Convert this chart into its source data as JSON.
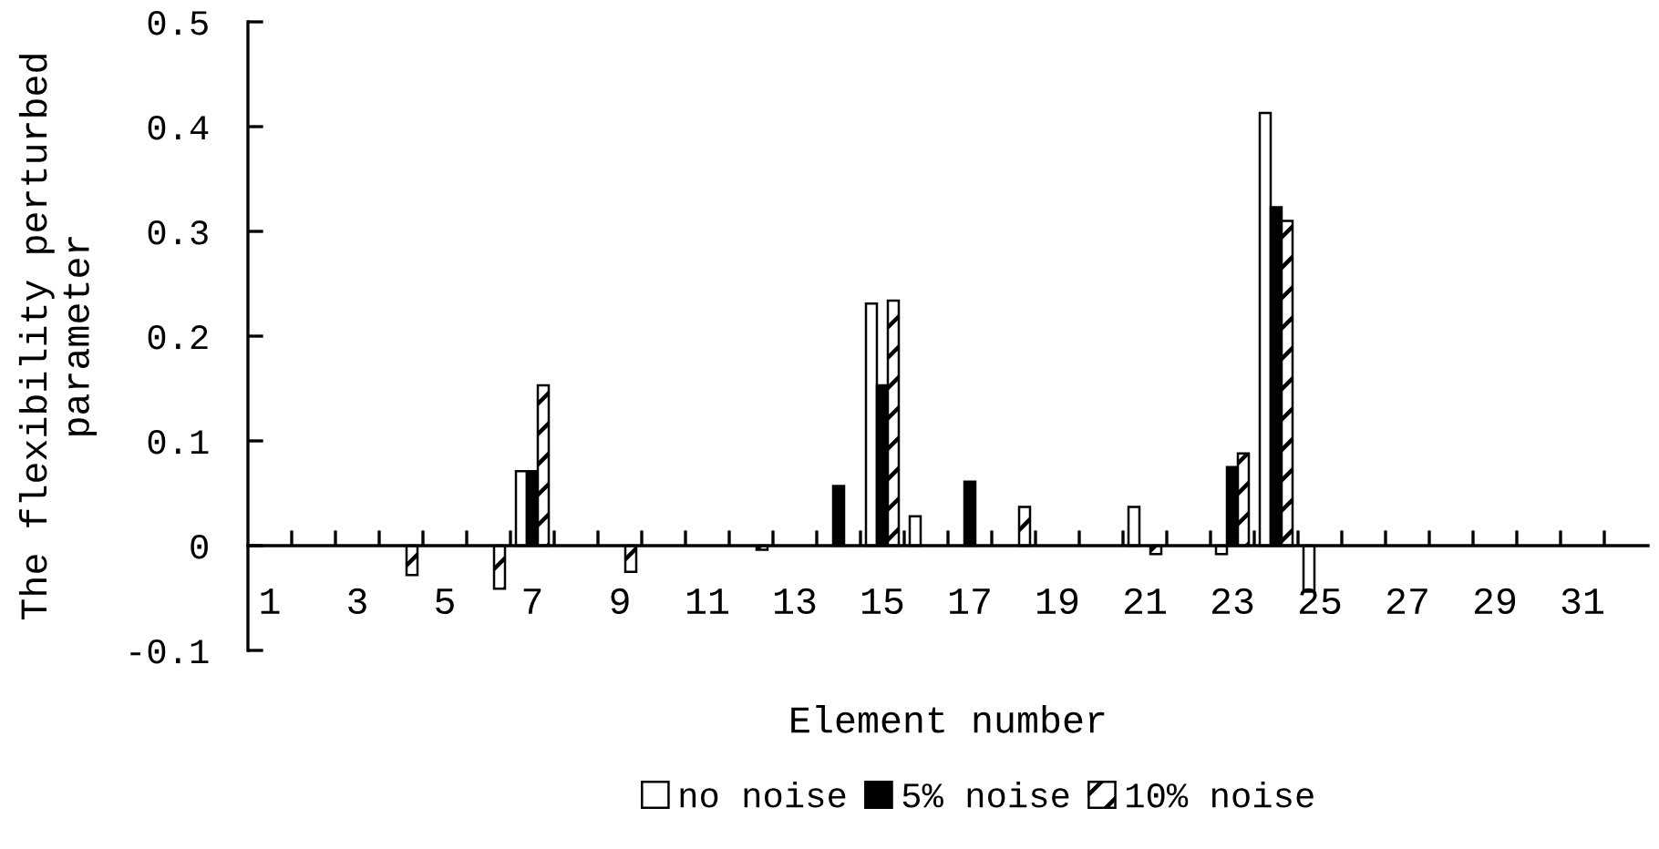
{
  "chart_data": {
    "type": "bar",
    "xlabel": "Element number",
    "ylabel": "The flexibility perturbed parameter",
    "categories": [
      "1",
      null,
      "3",
      null,
      "5",
      null,
      "7",
      null,
      "9",
      null,
      "11",
      null,
      "13",
      null,
      "15",
      null,
      "17",
      null,
      "19",
      null,
      "21",
      null,
      "23",
      null,
      "25",
      null,
      "27",
      null,
      "29",
      null,
      "31",
      null
    ],
    "series": [
      {
        "name": "no noise",
        "color": "#ffffff",
        "values": [
          null,
          null,
          null,
          null,
          null,
          null,
          0.071,
          null,
          null,
          null,
          null,
          null,
          null,
          null,
          0.231,
          0.028,
          null,
          null,
          null,
          null,
          0.037,
          null,
          -0.008,
          0.413,
          -0.044,
          null,
          null,
          null,
          null,
          null,
          null,
          null
        ]
      },
      {
        "name": "5% noise",
        "color": "#000000",
        "values": [
          null,
          null,
          null,
          null,
          null,
          null,
          0.071,
          null,
          null,
          null,
          null,
          null,
          null,
          0.057,
          0.153,
          null,
          0.061,
          null,
          null,
          null,
          null,
          null,
          0.075,
          0.323,
          null,
          null,
          null,
          null,
          null,
          null,
          null,
          null
        ]
      },
      {
        "name": "10% noise",
        "color": "#ffffff",
        "values": [
          null,
          null,
          null,
          -0.028,
          null,
          -0.041,
          0.153,
          null,
          -0.025,
          null,
          null,
          -0.004,
          null,
          null,
          0.234,
          null,
          null,
          0.037,
          null,
          null,
          -0.008,
          null,
          0.088,
          0.31,
          null,
          null,
          null,
          null,
          null,
          null,
          null,
          null
        ]
      }
    ],
    "ylim": [
      -0.1,
      0.5
    ],
    "yticks": [
      -0.1,
      0,
      0.1,
      0.2,
      0.3,
      0.4,
      0.5
    ],
    "legend": "bottom"
  }
}
